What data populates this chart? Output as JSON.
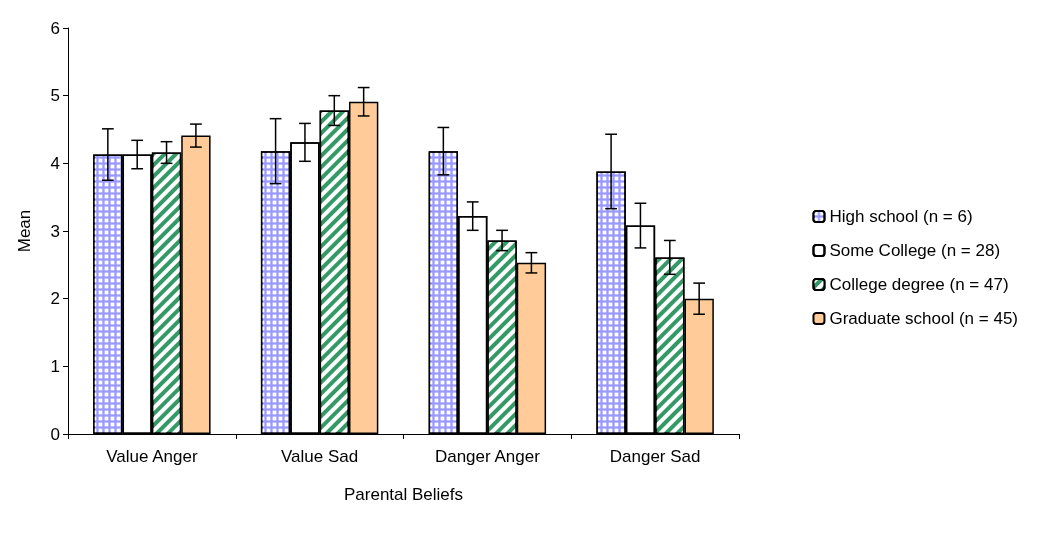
{
  "chart_data": {
    "type": "bar",
    "xlabel": "Parental Beliefs",
    "ylabel": "Mean",
    "categories": [
      "Value Anger",
      "Value Sad",
      "Danger Anger",
      "Danger Sad"
    ],
    "series": [
      {
        "name": "High school (n = 6)",
        "color": "#9999ff",
        "values": [
          4.13,
          4.18,
          4.18,
          3.88
        ],
        "errors": [
          0.38,
          0.48,
          0.35,
          0.55
        ]
      },
      {
        "name": "Some College (n = 28)",
        "color": "#ffffff",
        "values": [
          4.13,
          4.31,
          3.22,
          3.08
        ],
        "errors": [
          0.21,
          0.28,
          0.21,
          0.33
        ]
      },
      {
        "name": "College degree (n = 47)",
        "color": "#339966",
        "values": [
          4.16,
          4.78,
          2.86,
          2.61
        ],
        "errors": [
          0.16,
          0.22,
          0.15,
          0.25
        ]
      },
      {
        "name": "Graduate school (n = 45)",
        "color": "#ffcc99",
        "values": [
          4.41,
          4.91,
          2.53,
          2.0
        ],
        "errors": [
          0.17,
          0.21,
          0.15,
          0.23
        ]
      }
    ],
    "ylim": [
      0,
      6
    ],
    "yticks": [
      0,
      1,
      2,
      3,
      4,
      5,
      6
    ],
    "grid": false,
    "legend": "right"
  }
}
